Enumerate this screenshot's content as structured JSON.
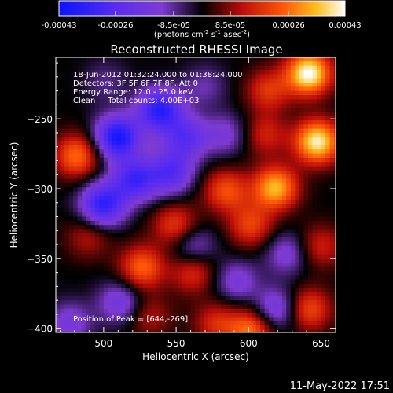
{
  "chart_data": {
    "type": "heatmap",
    "title": "Reconstructed RHESSI Image",
    "xlabel": "Heliocentric X (arcsec)",
    "ylabel": "Heliocentric Y (arcsec)",
    "xlim": [
      467,
      660
    ],
    "ylim": [
      -403,
      -206
    ],
    "x_ticks": [
      500,
      550,
      600,
      650
    ],
    "y_ticks": [
      -250,
      -300,
      -350,
      -400
    ],
    "colorbar": {
      "range": [
        -0.00043,
        0.00043
      ],
      "tick_labels": [
        "-0.00043",
        "-0.00026",
        "-8.5e-05",
        "8.5e-05",
        "0.00026",
        "0.00043"
      ],
      "unit_text": {
        "prefix": "(photons cm",
        "sup1": "-2",
        "mid1": " s",
        "sup2": "-1",
        "mid2": " asec",
        "sup3": "-2",
        "suffix": ")"
      }
    },
    "annotations": [
      "18-Jun-2012 01:32:24.000 to 01:38:24.000",
      "Detectors: 3F 5F 6F 7F 8F, Att 0",
      "Energy Range: 12.0 - 25.0 keV",
      "Clean     Total counts: 4.00E+03"
    ],
    "peak_text": "Position of Peak = [644,-269]",
    "peak": [
      644,
      -269
    ],
    "sources": [
      {
        "x": 640,
        "y": -216,
        "value": 0.00043
      },
      {
        "x": 646,
        "y": -265,
        "value": 0.00041
      },
      {
        "x": 612,
        "y": -228,
        "value": 0.00018
      },
      {
        "x": 617,
        "y": -298,
        "value": 0.00034
      },
      {
        "x": 600,
        "y": -325,
        "value": 0.0002
      },
      {
        "x": 583,
        "y": -300,
        "value": 0.00022
      },
      {
        "x": 548,
        "y": -325,
        "value": 0.0002
      },
      {
        "x": 525,
        "y": -355,
        "value": 0.00025
      },
      {
        "x": 560,
        "y": -358,
        "value": 0.00018
      },
      {
        "x": 600,
        "y": -400,
        "value": 0.00026
      },
      {
        "x": 640,
        "y": -385,
        "value": 0.00022
      },
      {
        "x": 648,
        "y": -340,
        "value": 0.00015
      },
      {
        "x": 480,
        "y": -275,
        "value": 0.00026
      },
      {
        "x": 488,
        "y": -333,
        "value": 0.00012
      },
      {
        "x": 530,
        "y": -390,
        "value": 0.00012
      },
      {
        "x": 610,
        "y": -260,
        "value": 0.00015
      },
      {
        "x": 576,
        "y": -395,
        "value": 0.00016
      },
      {
        "x": 508,
        "y": -262,
        "value": -0.0004
      },
      {
        "x": 537,
        "y": -242,
        "value": -0.00036
      },
      {
        "x": 498,
        "y": -310,
        "value": -0.00035
      },
      {
        "x": 520,
        "y": -292,
        "value": -0.0003
      },
      {
        "x": 545,
        "y": -287,
        "value": -0.00026
      },
      {
        "x": 555,
        "y": -262,
        "value": -0.00024
      },
      {
        "x": 583,
        "y": -260,
        "value": -0.00014
      },
      {
        "x": 560,
        "y": -340,
        "value": -0.00016
      },
      {
        "x": 625,
        "y": -345,
        "value": -0.00015
      },
      {
        "x": 590,
        "y": -365,
        "value": -0.00015
      },
      {
        "x": 618,
        "y": -385,
        "value": -0.0002
      },
      {
        "x": 510,
        "y": -380,
        "value": -0.00018
      },
      {
        "x": 475,
        "y": -395,
        "value": -0.00016
      },
      {
        "x": 500,
        "y": -222,
        "value": -8e-05
      },
      {
        "x": 568,
        "y": -225,
        "value": -0.0001
      }
    ]
  },
  "footer": {
    "date_stamp": "11-May-2022 17:51"
  }
}
